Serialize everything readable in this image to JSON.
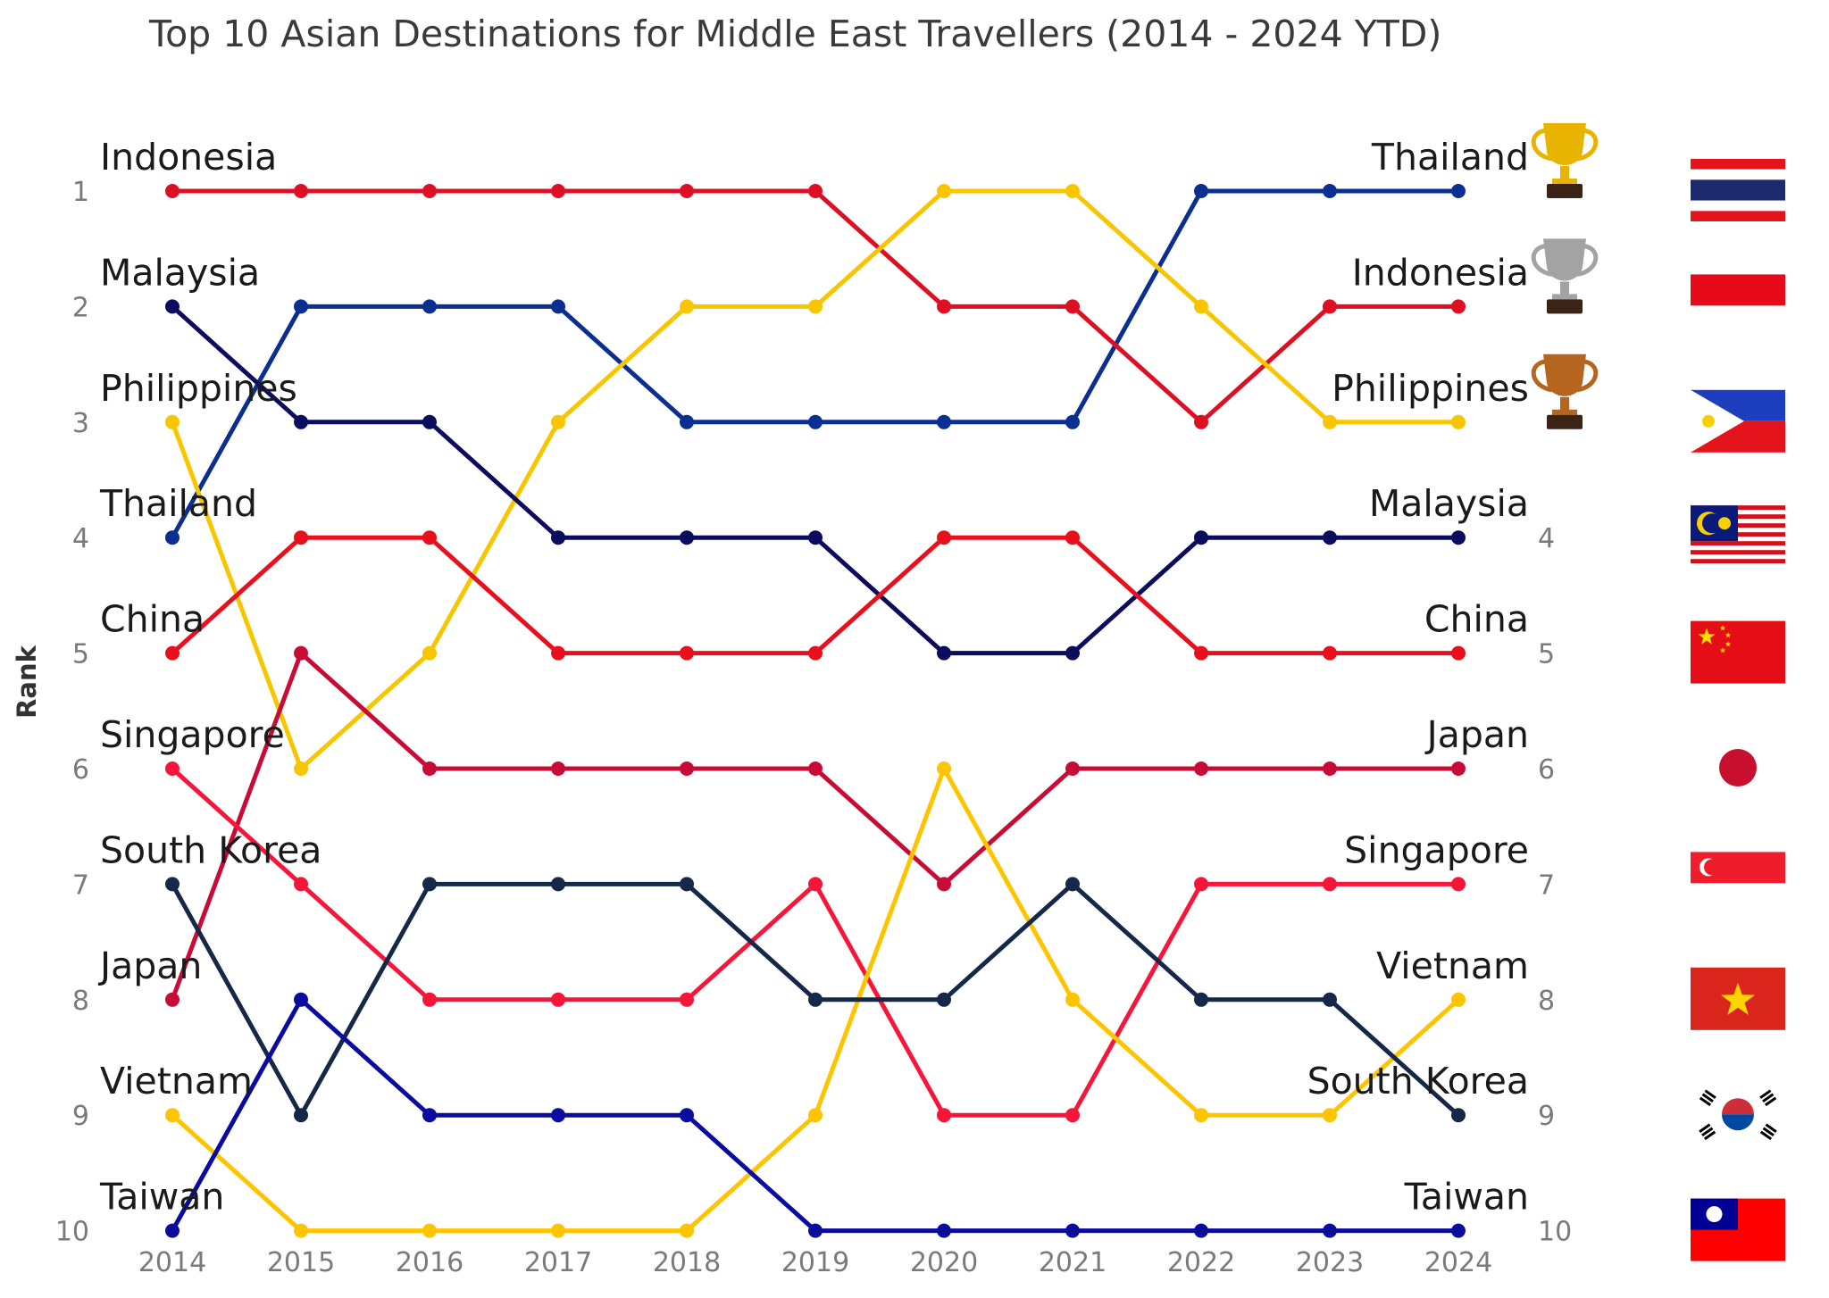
{
  "chart_data": {
    "type": "line",
    "title": "Top 10 Asian Destinations for Middle East Travellers (2014 - 2024 YTD)",
    "ylabel": "Rank",
    "xlabel": "",
    "x": [
      "2014",
      "2015",
      "2016",
      "2017",
      "2018",
      "2019",
      "2020",
      "2021",
      "2022",
      "2023",
      "2024"
    ],
    "ylim": [
      1,
      10
    ],
    "y_inverted": true,
    "y_ticks_left": [
      "1",
      "2",
      "3",
      "4",
      "5",
      "6",
      "7",
      "8",
      "9",
      "10"
    ],
    "y_ticks_right": [
      "4",
      "5",
      "6",
      "7",
      "8",
      "9",
      "10"
    ],
    "grid": false,
    "legend": "none",
    "series": [
      {
        "name": "Thailand",
        "color": "#0b2e91",
        "values": [
          4,
          2,
          2,
          2,
          3,
          3,
          3,
          3,
          1,
          1,
          1
        ]
      },
      {
        "name": "Indonesia",
        "color": "#dc0f23",
        "values": [
          1,
          1,
          1,
          1,
          1,
          1,
          2,
          2,
          3,
          2,
          2
        ]
      },
      {
        "name": "Philippines",
        "color": "#f7c600",
        "values": [
          3,
          6,
          5,
          3,
          2,
          2,
          1,
          1,
          2,
          3,
          3
        ]
      },
      {
        "name": "Malaysia",
        "color": "#0c0c5e",
        "values": [
          2,
          3,
          3,
          4,
          4,
          4,
          5,
          5,
          4,
          4,
          4
        ]
      },
      {
        "name": "China",
        "color": "#e8101c",
        "values": [
          5,
          4,
          4,
          5,
          5,
          5,
          4,
          4,
          5,
          5,
          5
        ]
      },
      {
        "name": "Japan",
        "color": "#c70d35",
        "values": [
          8,
          5,
          6,
          6,
          6,
          6,
          7,
          6,
          6,
          6,
          6
        ]
      },
      {
        "name": "Singapore",
        "color": "#f5163a",
        "values": [
          6,
          7,
          8,
          8,
          8,
          7,
          9,
          9,
          7,
          7,
          7
        ]
      },
      {
        "name": "Vietnam",
        "color": "#ffc400",
        "values": [
          9,
          10,
          10,
          10,
          10,
          9,
          6,
          8,
          9,
          9,
          8
        ]
      },
      {
        "name": "South Korea",
        "color": "#15284a",
        "values": [
          7,
          9,
          7,
          7,
          7,
          8,
          8,
          7,
          8,
          8,
          9
        ]
      },
      {
        "name": "Taiwan",
        "color": "#0b0b9e",
        "values": [
          10,
          8,
          9,
          9,
          9,
          10,
          10,
          10,
          10,
          10,
          10
        ]
      }
    ],
    "left_labels": [
      "Indonesia",
      "Malaysia",
      "Philippines",
      "Thailand",
      "China",
      "Singapore",
      "South Korea",
      "Japan",
      "Vietnam",
      "Taiwan"
    ],
    "right_labels": [
      "Thailand",
      "Indonesia",
      "Philippines",
      "Malaysia",
      "China",
      "Japan",
      "Singapore",
      "Vietnam",
      "South Korea",
      "Taiwan"
    ],
    "trophies": [
      {
        "rank": 1,
        "icon": "gold-trophy-icon",
        "color": "#e8b400"
      },
      {
        "rank": 2,
        "icon": "silver-trophy-icon",
        "color": "#a3a3a3"
      },
      {
        "rank": 3,
        "icon": "bronze-trophy-icon",
        "color": "#b5651d"
      }
    ],
    "flags": [
      "thailand-flag-icon",
      "indonesia-flag-icon",
      "philippines-flag-icon",
      "malaysia-flag-icon",
      "china-flag-icon",
      "japan-flag-icon",
      "singapore-flag-icon",
      "vietnam-flag-icon",
      "south-korea-flag-icon",
      "taiwan-flag-icon"
    ]
  }
}
